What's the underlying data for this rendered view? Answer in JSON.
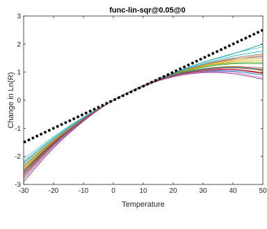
{
  "chart_data": {
    "type": "line",
    "title": "func-lin-sqr@0.05@0",
    "xlabel": "Temperature",
    "ylabel": "Change in Ln(R)",
    "xlim": [
      -30,
      50
    ],
    "ylim": [
      -3,
      3
    ],
    "xticks": [
      "-30",
      "-20",
      "-10",
      "0",
      "10",
      "20",
      "30",
      "40",
      "50"
    ],
    "yticks": [
      "-3",
      "-2",
      "-1",
      "0",
      "1",
      "2",
      "3"
    ],
    "grid": false,
    "legend": "none",
    "reference_line": {
      "style": "dotted",
      "color": "#000000",
      "x": [
        -30,
        50
      ],
      "y": [
        -1.5,
        2.5
      ]
    },
    "series": [
      {
        "color": "#0072BD",
        "x": [
          -30,
          -20,
          -10,
          0,
          10,
          20,
          30,
          40,
          50
        ],
        "y": [
          -2.5,
          -1.5,
          -0.67,
          0,
          0.5,
          0.85,
          1.02,
          1.03,
          0.9
        ]
      },
      {
        "color": "#D95319",
        "x": [
          -30,
          -20,
          -10,
          0,
          10,
          20,
          30,
          40,
          50
        ],
        "y": [
          -2.7,
          -1.6,
          -0.7,
          0,
          0.52,
          0.9,
          1.12,
          1.2,
          1.15
        ]
      },
      {
        "color": "#EDB120",
        "x": [
          -30,
          -20,
          -10,
          0,
          10,
          20,
          30,
          40,
          50
        ],
        "y": [
          -2.3,
          -1.42,
          -0.65,
          0,
          0.52,
          0.92,
          1.2,
          1.37,
          1.42
        ]
      },
      {
        "color": "#7E2F8E",
        "x": [
          -30,
          -20,
          -10,
          0,
          10,
          20,
          30,
          40,
          50
        ],
        "y": [
          -2.9,
          -1.7,
          -0.75,
          0,
          0.5,
          0.83,
          0.98,
          0.95,
          0.75
        ]
      },
      {
        "color": "#77AC30",
        "x": [
          -30,
          -20,
          -10,
          0,
          10,
          20,
          30,
          40,
          50
        ],
        "y": [
          -2.45,
          -1.48,
          -0.68,
          0,
          0.53,
          0.93,
          1.2,
          1.33,
          1.35
        ]
      },
      {
        "color": "#4DBEEE",
        "x": [
          -30,
          -20,
          -10,
          0,
          10,
          20,
          30,
          40,
          50
        ],
        "y": [
          -2.1,
          -1.3,
          -0.6,
          0,
          0.52,
          0.97,
          1.35,
          1.66,
          1.9
        ]
      },
      {
        "color": "#A2142F",
        "x": [
          -30,
          -20,
          -10,
          0,
          10,
          20,
          30,
          40,
          50
        ],
        "y": [
          -2.6,
          -1.55,
          -0.7,
          0,
          0.5,
          0.86,
          1.05,
          1.1,
          0.98
        ]
      },
      {
        "color": "#1F9E89",
        "x": [
          -30,
          -20,
          -10,
          0,
          10,
          20,
          30,
          40,
          50
        ],
        "y": [
          -2.2,
          -1.35,
          -0.62,
          0,
          0.53,
          0.97,
          1.35,
          1.65,
          2.0
        ]
      },
      {
        "color": "#B8860B",
        "x": [
          -30,
          -20,
          -10,
          0,
          10,
          20,
          30,
          40,
          50
        ],
        "y": [
          -2.55,
          -1.52,
          -0.69,
          0,
          0.51,
          0.9,
          1.12,
          1.2,
          1.05
        ]
      },
      {
        "color": "#6A5ACD",
        "x": [
          -30,
          -20,
          -10,
          0,
          10,
          20,
          30,
          40,
          50
        ],
        "y": [
          -2.35,
          -1.44,
          -0.66,
          0,
          0.52,
          0.93,
          1.25,
          1.46,
          1.55
        ]
      },
      {
        "color": "#E377C2",
        "x": [
          -30,
          -20,
          -10,
          0,
          10,
          20,
          30,
          40,
          50
        ],
        "y": [
          -2.75,
          -1.62,
          -0.72,
          0,
          0.49,
          0.84,
          1.0,
          1.0,
          0.8
        ]
      },
      {
        "color": "#8C564B",
        "x": [
          -30,
          -20,
          -10,
          0,
          10,
          20,
          30,
          40,
          50
        ],
        "y": [
          -2.65,
          -1.58,
          -0.71,
          0,
          0.5,
          0.87,
          1.08,
          1.15,
          1.08
        ]
      },
      {
        "color": "#17BECF",
        "x": [
          -30,
          -20,
          -10,
          0,
          10,
          20,
          30,
          40,
          50
        ],
        "y": [
          -2.25,
          -1.38,
          -0.63,
          0,
          0.53,
          0.96,
          1.3,
          1.57,
          1.75
        ]
      },
      {
        "color": "#BCBD22",
        "x": [
          -30,
          -20,
          -10,
          0,
          10,
          20,
          30,
          40,
          50
        ],
        "y": [
          -2.4,
          -1.46,
          -0.67,
          0,
          0.52,
          0.92,
          1.22,
          1.41,
          1.5
        ]
      },
      {
        "color": "#2CA02C",
        "x": [
          -30,
          -20,
          -10,
          0,
          10,
          20,
          30,
          40,
          50
        ],
        "y": [
          -2.5,
          -1.49,
          -0.68,
          0,
          0.51,
          0.91,
          1.17,
          1.3,
          1.3
        ]
      },
      {
        "color": "#9467BD",
        "x": [
          -30,
          -20,
          -10,
          0,
          10,
          20,
          30,
          40,
          50
        ],
        "y": [
          -2.8,
          -1.65,
          -0.73,
          0,
          0.49,
          0.85,
          1.03,
          1.07,
          0.95
        ]
      },
      {
        "color": "#FF7F0E",
        "x": [
          -30,
          -20,
          -10,
          0,
          10,
          20,
          30,
          40,
          50
        ],
        "y": [
          -2.45,
          -1.47,
          -0.67,
          0,
          0.52,
          0.93,
          1.25,
          1.45,
          1.6
        ]
      },
      {
        "color": "#1F77B4",
        "x": [
          -30,
          -20,
          -10,
          0,
          10,
          20,
          30,
          40,
          50
        ],
        "y": [
          -2.6,
          -1.54,
          -0.7,
          0,
          0.51,
          0.89,
          1.1,
          1.18,
          1.1
        ]
      },
      {
        "color": "#D62728",
        "x": [
          -30,
          -20,
          -10,
          0,
          10,
          20,
          30,
          40,
          50
        ],
        "y": [
          -2.55,
          -1.51,
          -0.69,
          0,
          0.5,
          0.87,
          1.05,
          1.1,
          0.95
        ]
      },
      {
        "color": "#7F7F7F",
        "x": [
          -30,
          -20,
          -10,
          0,
          10,
          20,
          30,
          40,
          50
        ],
        "y": [
          -2.35,
          -1.43,
          -0.65,
          0,
          0.52,
          0.94,
          1.27,
          1.5,
          1.65
        ]
      }
    ]
  }
}
